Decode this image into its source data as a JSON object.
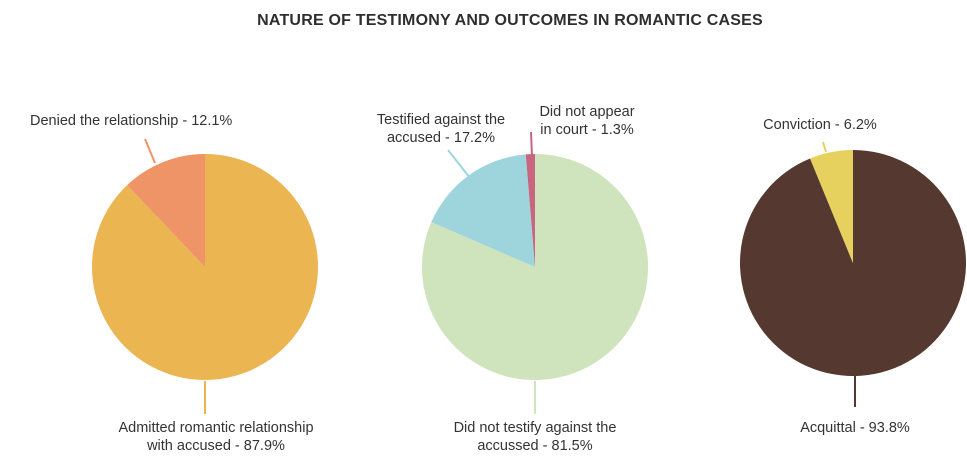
{
  "title": "NATURE OF TESTIMONY AND OUTCOMES IN ROMANTIC CASES",
  "chart_data": [
    {
      "type": "pie",
      "name": "relationship",
      "slices": [
        {
          "label_lines": [
            "Admitted romantic relationship",
            "with accused - 87.9%"
          ],
          "value": 87.9,
          "color": "#EBB552"
        },
        {
          "label_lines": [
            "Denied the relationship - 12.1%"
          ],
          "value": 12.1,
          "color": "#EF9466"
        }
      ]
    },
    {
      "type": "pie",
      "name": "testimony",
      "slices": [
        {
          "label_lines": [
            "Did not testify against the",
            "accussed - 81.5%"
          ],
          "value": 81.5,
          "color": "#CFE3BC"
        },
        {
          "label_lines": [
            "Testified against the",
            "accused - 17.2%"
          ],
          "value": 17.2,
          "color": "#9ED5DD"
        },
        {
          "label_lines": [
            "Did not appear",
            "in court - 1.3%"
          ],
          "value": 1.3,
          "color": "#C9667F"
        }
      ]
    },
    {
      "type": "pie",
      "name": "outcome",
      "slices": [
        {
          "label_lines": [
            "Acquittal - 93.8%"
          ],
          "value": 93.8,
          "color": "#553830"
        },
        {
          "label_lines": [
            "Conviction - 6.2%"
          ],
          "value": 6.2,
          "color": "#E6D15E"
        }
      ]
    }
  ]
}
